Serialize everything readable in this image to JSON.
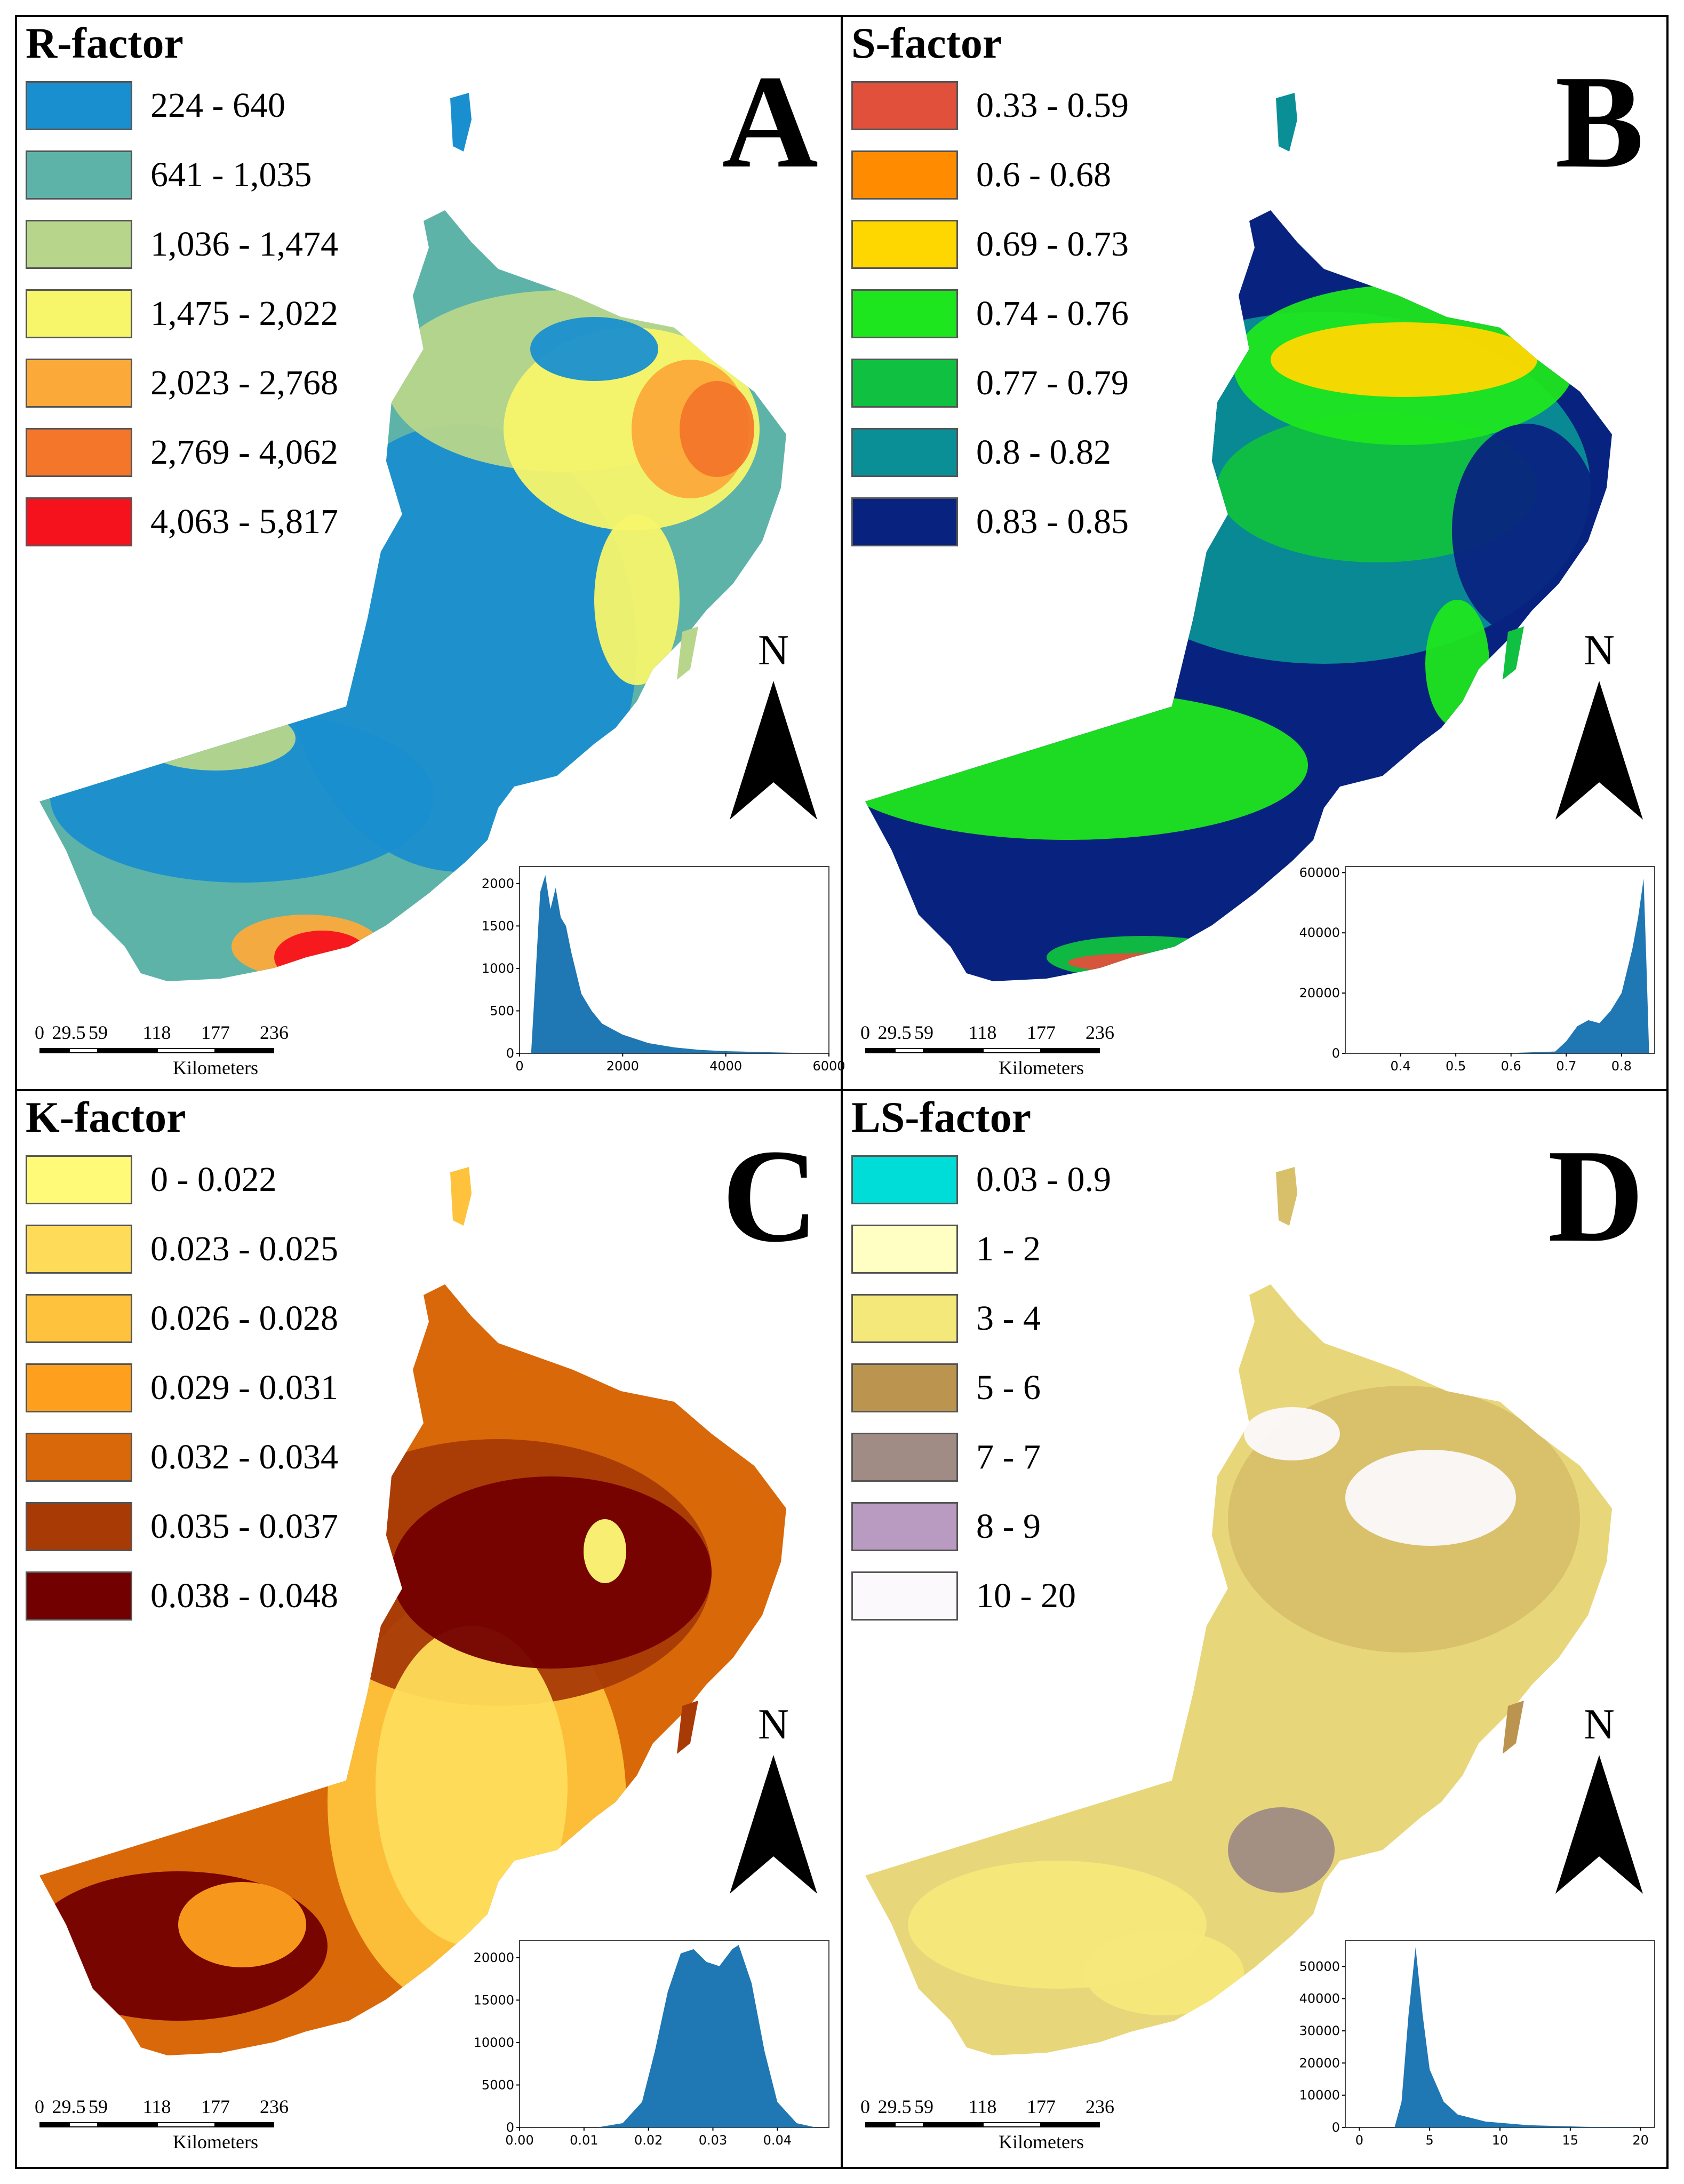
{
  "panels": [
    {
      "id": "A",
      "title": "R-factor",
      "letter": "A",
      "legend": [
        {
          "label": "224 - 640",
          "color": "#1a8fcf"
        },
        {
          "label": "641 - 1,035",
          "color": "#5eb3a8"
        },
        {
          "label": "1,036 - 1,474",
          "color": "#b7d68b"
        },
        {
          "label": "1,475 - 2,022",
          "color": "#f7f56a"
        },
        {
          "label": "2,023 - 2,768",
          "color": "#fbaa3a"
        },
        {
          "label": "2,769 - 4,062",
          "color": "#f4762a"
        },
        {
          "label": "4,063 - 5,817",
          "color": "#f5121c"
        }
      ],
      "north": "N",
      "scalebar": {
        "ticks": [
          "0",
          "29.5",
          "59",
          "118",
          "177",
          "236"
        ],
        "unit": "Kilometers"
      },
      "histogram": {
        "xticks": [
          "0",
          "2000",
          "4000",
          "6000"
        ],
        "yticks": [
          "0",
          "500",
          "1000",
          "1500",
          "2000"
        ],
        "xlim": [
          0,
          6000
        ],
        "ylim": [
          0,
          2200
        ],
        "color": "#1f77b4",
        "points": [
          [
            224,
            0
          ],
          [
            300,
            800
          ],
          [
            400,
            1900
          ],
          [
            500,
            2100
          ],
          [
            600,
            1700
          ],
          [
            700,
            1950
          ],
          [
            800,
            1600
          ],
          [
            900,
            1500
          ],
          [
            1000,
            1200
          ],
          [
            1100,
            950
          ],
          [
            1200,
            700
          ],
          [
            1400,
            500
          ],
          [
            1600,
            350
          ],
          [
            2000,
            220
          ],
          [
            2500,
            120
          ],
          [
            3000,
            70
          ],
          [
            3500,
            40
          ],
          [
            4000,
            25
          ],
          [
            5000,
            10
          ],
          [
            5817,
            0
          ]
        ]
      },
      "map_colors": [
        "#5eb3a8",
        "#1a8fcf",
        "#b7d68b",
        "#f7f56a",
        "#fbaa3a",
        "#f4762a",
        "#f5121c"
      ]
    },
    {
      "id": "B",
      "title": "S-factor",
      "letter": "B",
      "legend": [
        {
          "label": "0.33 - 0.59",
          "color": "#e0503a"
        },
        {
          "label": "0.6 - 0.68",
          "color": "#ff8c00"
        },
        {
          "label": "0.69 - 0.73",
          "color": "#ffd700"
        },
        {
          "label": "0.74 - 0.76",
          "color": "#1ee61e"
        },
        {
          "label": "0.77 - 0.79",
          "color": "#10c040"
        },
        {
          "label": "0.8 - 0.82",
          "color": "#0a8f96"
        },
        {
          "label": "0.83 - 0.85",
          "color": "#08237f"
        }
      ],
      "north": "N",
      "scalebar": {
        "ticks": [
          "0",
          "29.5",
          "59",
          "118",
          "177",
          "236"
        ],
        "unit": "Kilometers"
      },
      "histogram": {
        "xticks": [
          "0.4",
          "0.5",
          "0.6",
          "0.7",
          "0.8"
        ],
        "yticks": [
          "0",
          "20000",
          "40000",
          "60000"
        ],
        "xlim": [
          0.3,
          0.86
        ],
        "ylim": [
          0,
          62000
        ],
        "color": "#1f77b4",
        "points": [
          [
            0.33,
            0
          ],
          [
            0.6,
            100
          ],
          [
            0.68,
            600
          ],
          [
            0.7,
            4000
          ],
          [
            0.72,
            9000
          ],
          [
            0.74,
            11000
          ],
          [
            0.76,
            10000
          ],
          [
            0.78,
            14000
          ],
          [
            0.8,
            20000
          ],
          [
            0.82,
            35000
          ],
          [
            0.83,
            45000
          ],
          [
            0.84,
            58000
          ],
          [
            0.845,
            30000
          ],
          [
            0.85,
            0
          ]
        ]
      },
      "map_colors": [
        "#08237f",
        "#0a8f96",
        "#10c040",
        "#1ee61e",
        "#ffd700",
        "#ff8c00",
        "#e0503a"
      ]
    },
    {
      "id": "C",
      "title": "K-factor",
      "letter": "C",
      "legend": [
        {
          "label": "0 - 0.022",
          "color": "#fffb78"
        },
        {
          "label": "0.023 - 0.025",
          "color": "#fedc5a"
        },
        {
          "label": "0.026 - 0.028",
          "color": "#fec23c"
        },
        {
          "label": "0.029 - 0.031",
          "color": "#fea01e"
        },
        {
          "label": "0.032 - 0.034",
          "color": "#d9680a"
        },
        {
          "label": "0.035 - 0.037",
          "color": "#a83a06"
        },
        {
          "label": "0.038 - 0.048",
          "color": "#730000"
        }
      ],
      "north": "N",
      "scalebar": {
        "ticks": [
          "0",
          "29.5",
          "59",
          "118",
          "177",
          "236"
        ],
        "unit": "Kilometers"
      },
      "histogram": {
        "xticks": [
          "0.00",
          "0.01",
          "0.02",
          "0.03",
          "0.04"
        ],
        "yticks": [
          "0",
          "5000",
          "10000",
          "15000",
          "20000"
        ],
        "xlim": [
          0,
          0.048
        ],
        "ylim": [
          0,
          22000
        ],
        "color": "#1f77b4",
        "points": [
          [
            0.012,
            0
          ],
          [
            0.016,
            500
          ],
          [
            0.019,
            3000
          ],
          [
            0.021,
            9000
          ],
          [
            0.023,
            16000
          ],
          [
            0.025,
            20500
          ],
          [
            0.027,
            21000
          ],
          [
            0.029,
            19500
          ],
          [
            0.031,
            19000
          ],
          [
            0.033,
            21000
          ],
          [
            0.034,
            21500
          ],
          [
            0.036,
            17000
          ],
          [
            0.038,
            9000
          ],
          [
            0.04,
            3000
          ],
          [
            0.043,
            500
          ],
          [
            0.046,
            0
          ]
        ]
      },
      "map_colors": [
        "#d9680a",
        "#fec23c",
        "#a83a06",
        "#fedc5a",
        "#730000",
        "#fea01e",
        "#fffb78"
      ]
    },
    {
      "id": "D",
      "title": "LS-factor",
      "letter": "D",
      "legend": [
        {
          "label": "0.03 - 0.9",
          "color": "#00dcd8"
        },
        {
          "label": "1 - 2",
          "color": "#ffffc4"
        },
        {
          "label": "3 - 4",
          "color": "#f5e87a"
        },
        {
          "label": "5 - 6",
          "color": "#bb9450"
        },
        {
          "label": "7 - 7",
          "color": "#a08c84"
        },
        {
          "label": "8 - 9",
          "color": "#b99ac0"
        },
        {
          "label": "10 - 20",
          "color": "#fbf9fc"
        }
      ],
      "north": "N",
      "scalebar": {
        "ticks": [
          "0",
          "29.5",
          "59",
          "118",
          "177",
          "236"
        ],
        "unit": "Kilometers"
      },
      "histogram": {
        "xticks": [
          "0",
          "5",
          "10",
          "15",
          "20"
        ],
        "yticks": [
          "0",
          "10000",
          "20000",
          "30000",
          "40000",
          "50000"
        ],
        "xlim": [
          -1,
          21
        ],
        "ylim": [
          0,
          58000
        ],
        "color": "#1f77b4",
        "points": [
          [
            2.5,
            0
          ],
          [
            3,
            8000
          ],
          [
            3.5,
            35000
          ],
          [
            4,
            56000
          ],
          [
            4.5,
            35000
          ],
          [
            5,
            18000
          ],
          [
            6,
            8000
          ],
          [
            7,
            4000
          ],
          [
            9,
            1800
          ],
          [
            12,
            700
          ],
          [
            16,
            200
          ],
          [
            20,
            0
          ]
        ]
      },
      "map_colors": [
        "#e8d67a",
        "#d8bf6a",
        "#bb9450",
        "#f5e87a",
        "#a08c84",
        "#fbf9fc",
        "#e0cc72"
      ]
    }
  ]
}
